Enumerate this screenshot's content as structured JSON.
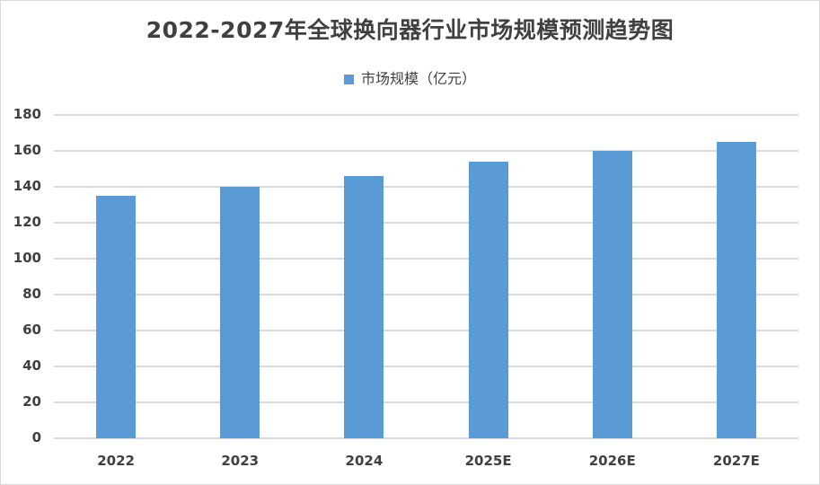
{
  "chart_data": {
    "type": "bar",
    "title": "2022-2027年全球换向器行业市场规模预测趋势图",
    "legend": [
      "市场规模（亿元）"
    ],
    "legend_position": "top",
    "categories": [
      "2022",
      "2023",
      "2024",
      "2025E",
      "2026E",
      "2027E"
    ],
    "series": [
      {
        "name": "市场规模（亿元）",
        "values": [
          135,
          140,
          146,
          154,
          160,
          165
        ],
        "color": "#5b9bd5"
      }
    ],
    "xlabel": "",
    "ylabel": "",
    "ylim": [
      0,
      180
    ],
    "yticks": [
      "0",
      "20",
      "40",
      "60",
      "80",
      "100",
      "120",
      "140",
      "160",
      "180"
    ],
    "grid": true
  }
}
